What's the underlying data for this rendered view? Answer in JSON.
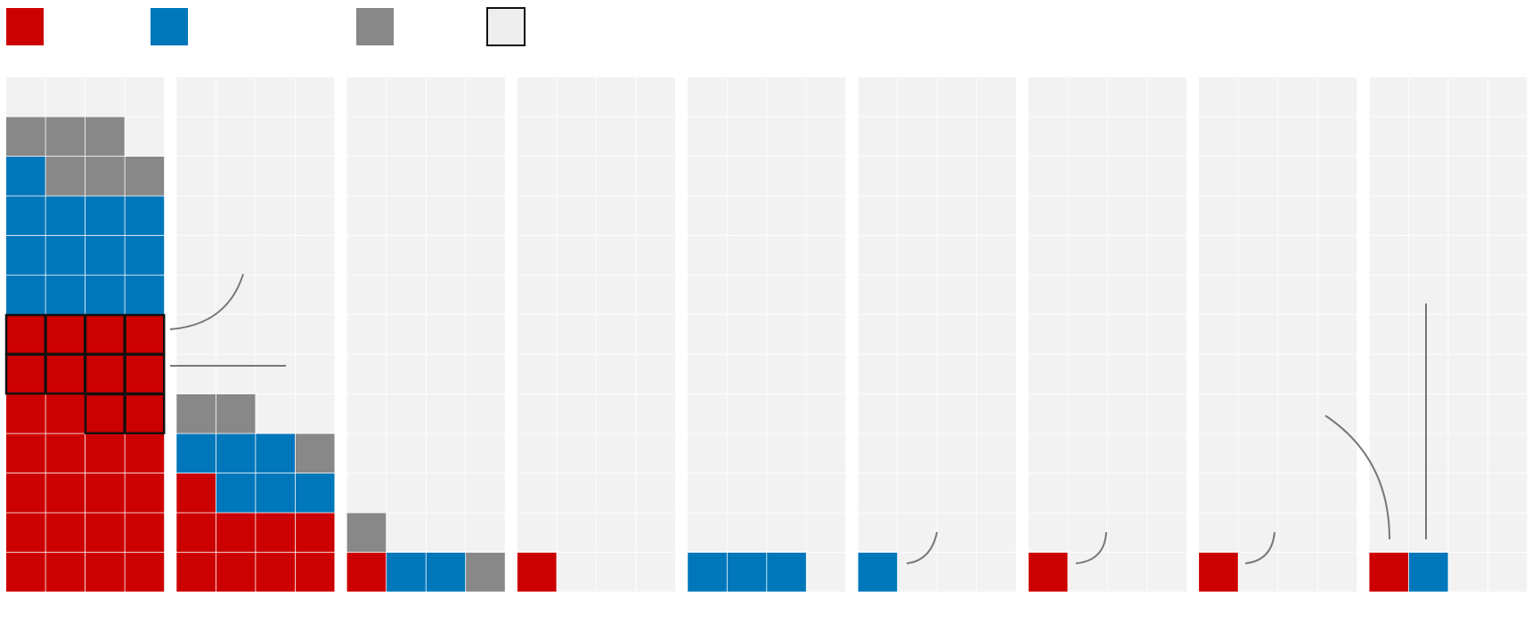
{
  "colors": {
    "red": "#cc0000",
    "blue": "#0077bb",
    "gray": "#888888",
    "empty": "#f2f2f2",
    "legend_empty": "#eeeeee",
    "outline": "#111111",
    "annotation": "#777777"
  },
  "chart_data": {
    "type": "waffle",
    "title": "",
    "unit_grid": {
      "columns": 4,
      "rows": 13
    },
    "legend": [
      {
        "key": "red",
        "label": ""
      },
      {
        "key": "blue",
        "label": ""
      },
      {
        "key": "gray",
        "label": ""
      },
      {
        "key": "empty",
        "label": ""
      }
    ],
    "groups": [
      {
        "label": "",
        "counts": {
          "red": 28,
          "blue": 13,
          "gray": 6
        },
        "highlighted_red": 10
      },
      {
        "label": "",
        "counts": {
          "red": 9,
          "blue": 6,
          "gray": 3
        },
        "highlighted_red": 0
      },
      {
        "label": "",
        "counts": {
          "red": 1,
          "blue": 2,
          "gray": 2
        },
        "highlighted_red": 0
      },
      {
        "label": "",
        "counts": {
          "red": 1,
          "blue": 0,
          "gray": 0
        },
        "highlighted_red": 0
      },
      {
        "label": "",
        "counts": {
          "red": 0,
          "blue": 3,
          "gray": 0
        },
        "highlighted_red": 0
      },
      {
        "label": "",
        "counts": {
          "red": 0,
          "blue": 1,
          "gray": 0
        },
        "highlighted_red": 0
      },
      {
        "label": "",
        "counts": {
          "red": 1,
          "blue": 0,
          "gray": 0
        },
        "highlighted_red": 0
      },
      {
        "label": "",
        "counts": {
          "red": 1,
          "blue": 0,
          "gray": 0
        },
        "highlighted_red": 0
      },
      {
        "label": "",
        "counts": {
          "red": 1,
          "blue": 1,
          "gray": 0
        },
        "highlighted_red": 0
      }
    ],
    "annotations": [
      {
        "label": ""
      },
      {
        "label": ""
      },
      {
        "label": ""
      },
      {
        "label": ""
      },
      {
        "label": ""
      },
      {
        "label": ""
      },
      {
        "label": ""
      }
    ]
  }
}
